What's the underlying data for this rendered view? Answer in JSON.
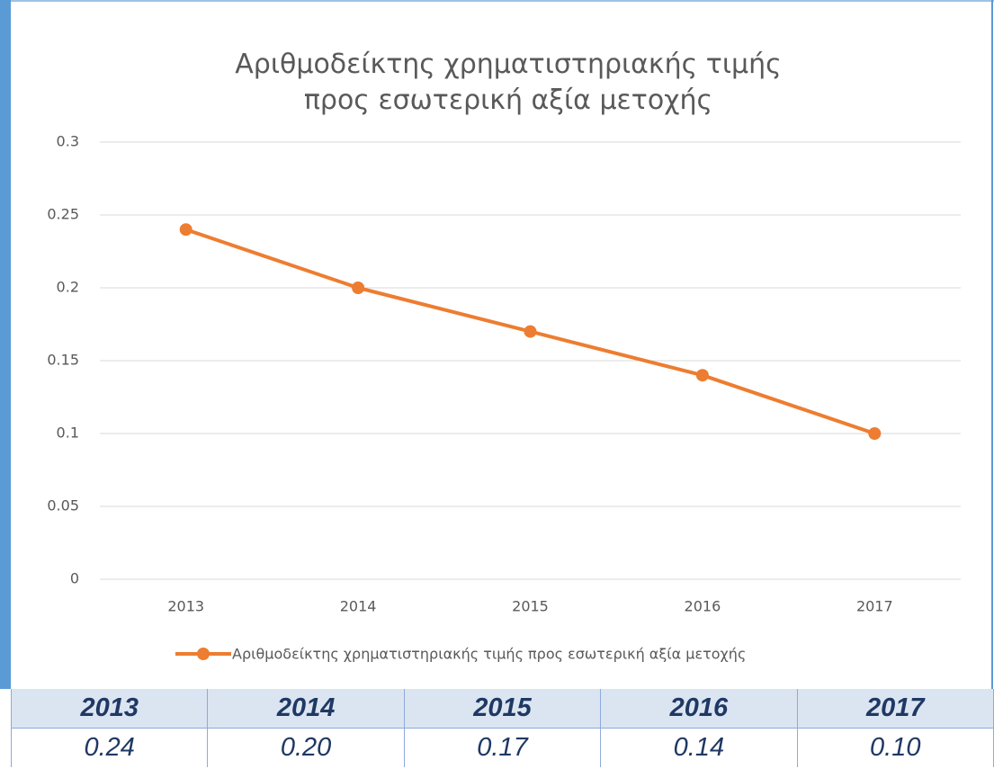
{
  "chart_data": {
    "type": "line",
    "title": "Αριθμοδείκτης χρηματιστηριακής τιμής προς εσωτερική αξία μετοχής",
    "categories": [
      "2013",
      "2014",
      "2015",
      "2016",
      "2017"
    ],
    "series": [
      {
        "name": "Αριθμοδείκτης χρηματιστηριακής τιμής προς εσωτερική αξία μετοχής",
        "color": "#ed7d31",
        "values": [
          0.24,
          0.2,
          0.17,
          0.14,
          0.1
        ]
      }
    ],
    "ylim": [
      0,
      0.3
    ],
    "yticks": [
      0,
      0.05,
      0.1,
      0.15,
      0.2,
      0.25,
      0.3
    ],
    "grid": true,
    "legend": "bottom"
  },
  "table": {
    "header": [
      "2013",
      "2014",
      "2015",
      "2016",
      "2017"
    ],
    "rows": [
      [
        "0.24",
        "0.20",
        "0.17",
        "0.14",
        "0.10"
      ]
    ]
  }
}
